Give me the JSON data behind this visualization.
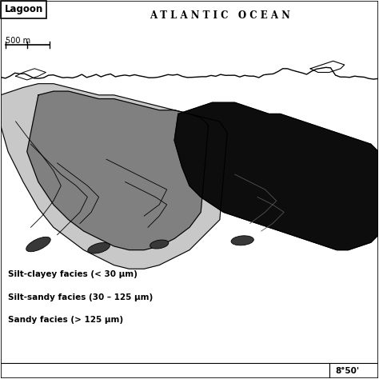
{
  "title": "A T L A N T I C   O C E A N",
  "lagoon_label": "Lagoon",
  "scale_label": "500 m",
  "coord_label": "8°50'",
  "legend": [
    {
      "label": "Silt-clayey facies (< 30 μm)",
      "color": "#d0d0d0"
    },
    {
      "label": "Silt-sandy facies (30 – 125 μm)",
      "color": "#888888"
    },
    {
      "label": "Sandy facies (> 125 μm)",
      "color": "#111111"
    }
  ],
  "bg_color": "#ffffff",
  "light_gray": "#c8c8c8",
  "medium_gray": "#808080",
  "dark_gray": "#383838",
  "black": "#0d0d0d",
  "outline_color": "#000000"
}
